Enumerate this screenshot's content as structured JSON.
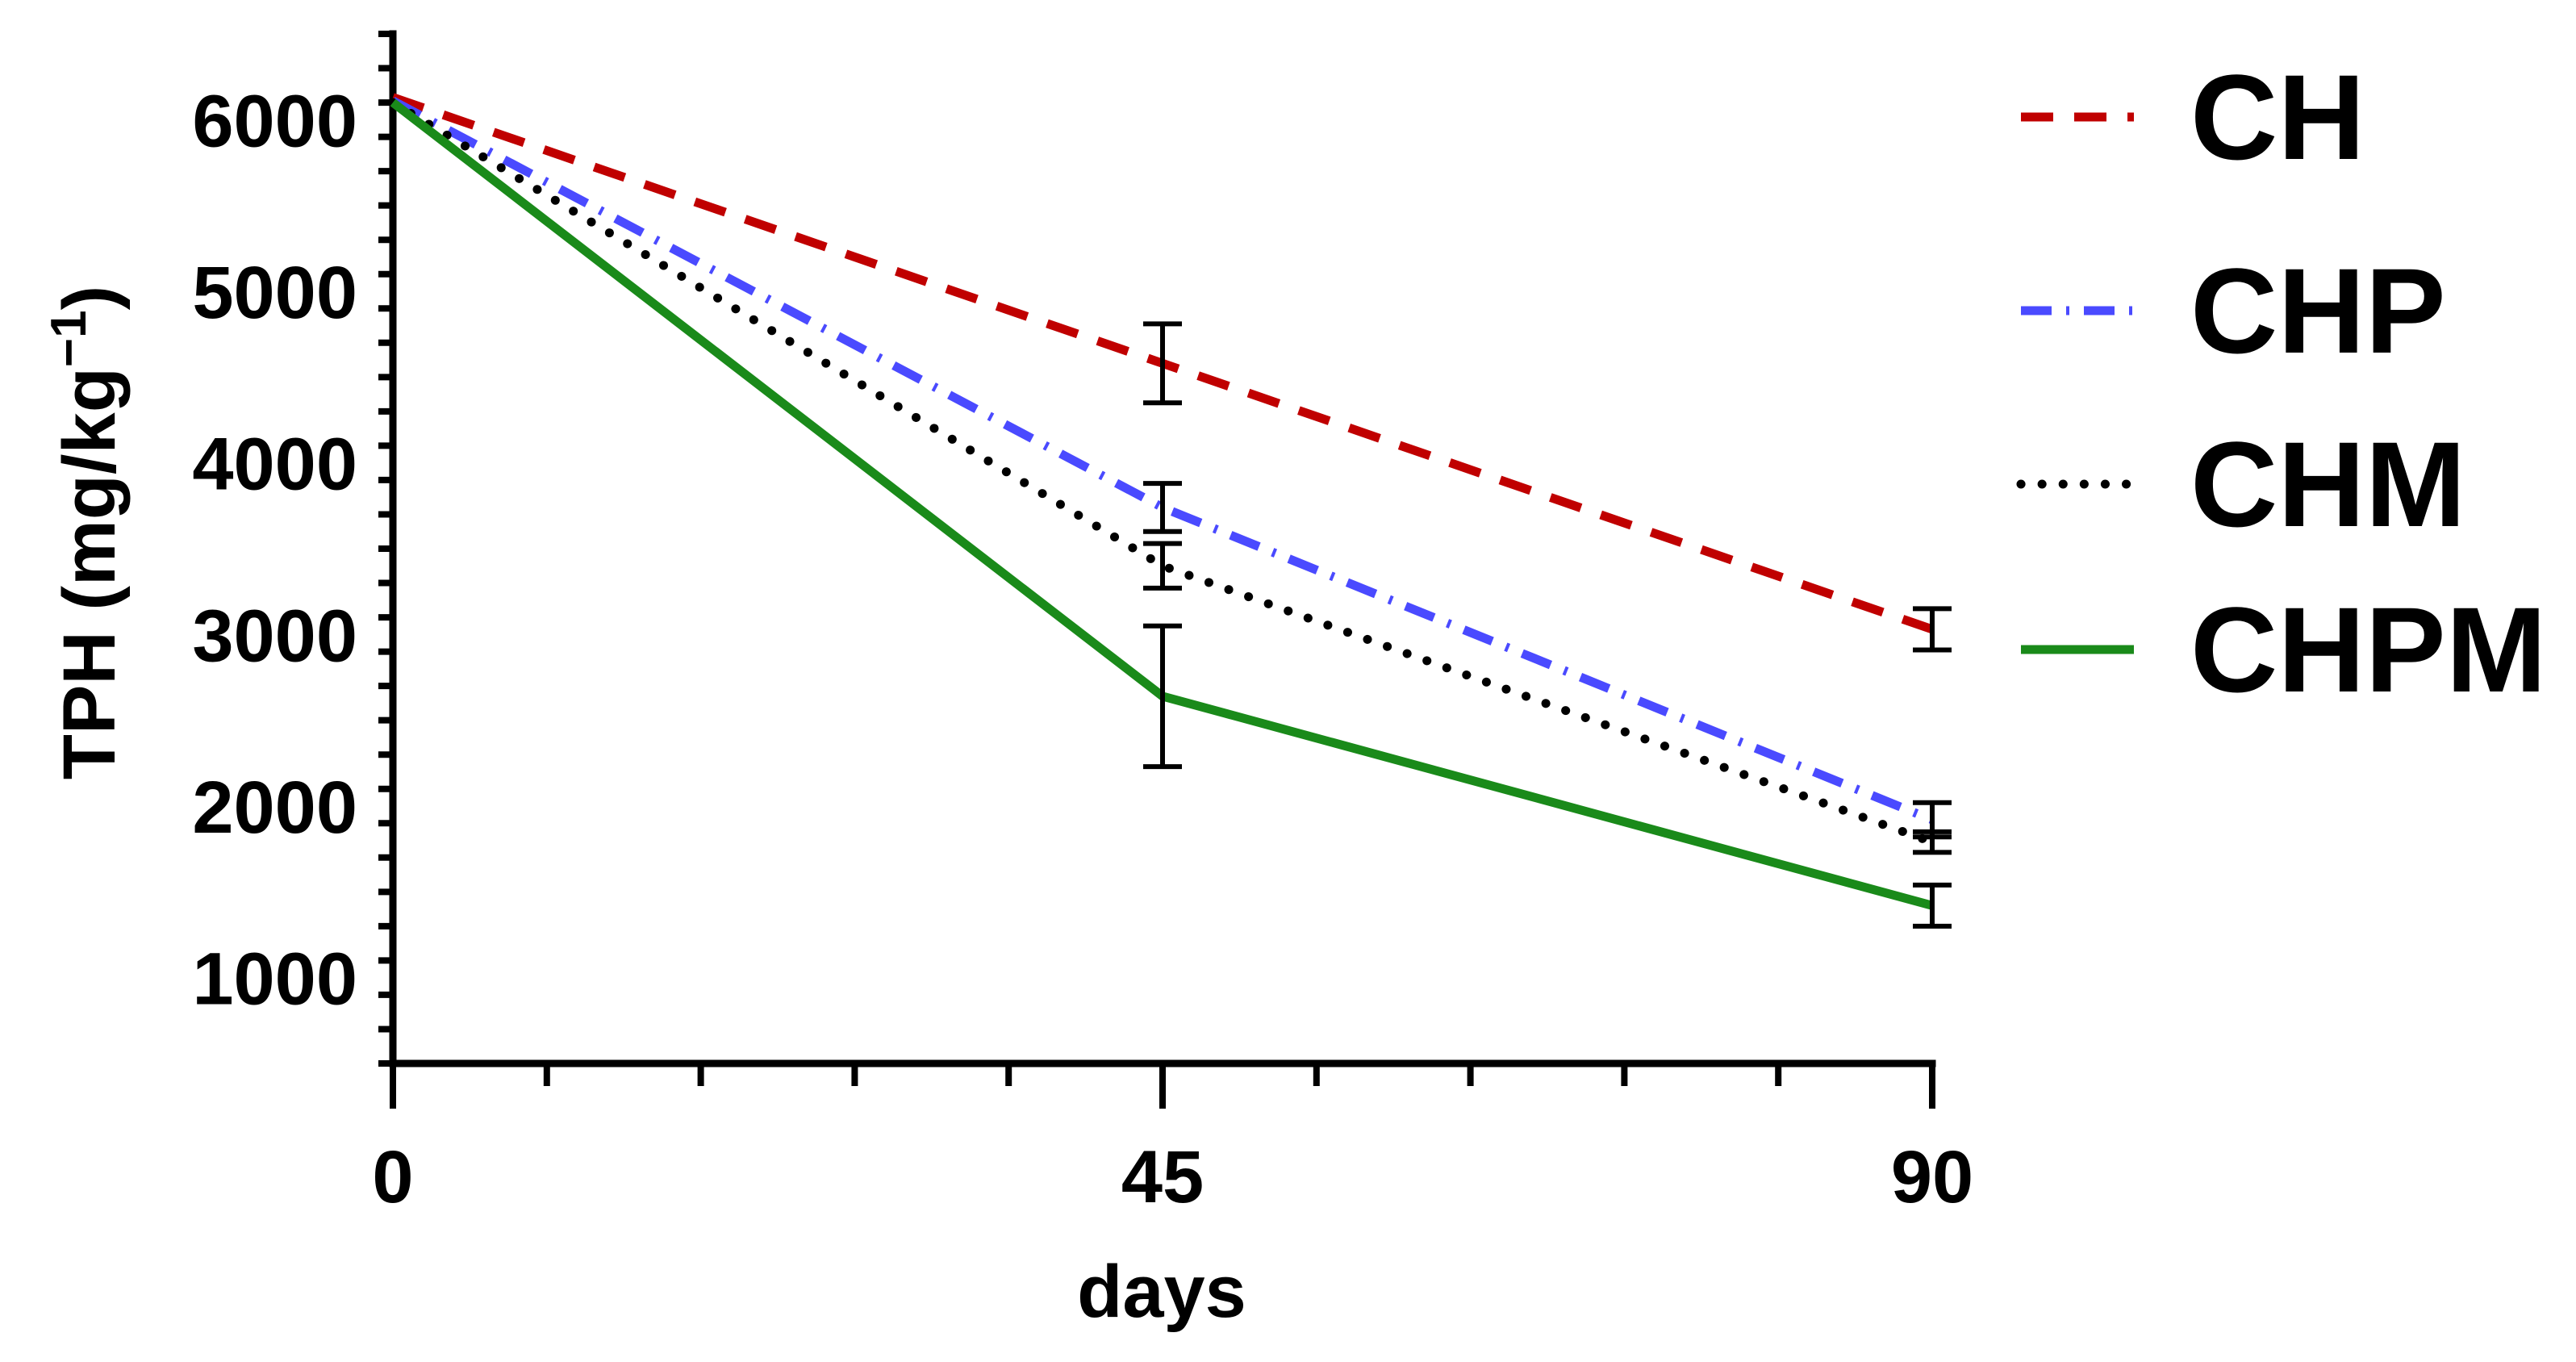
{
  "chart_data": {
    "type": "line",
    "title": "",
    "xlabel": "days",
    "ylabel_main": "TPH (mg/kg",
    "ylabel_sup": "−1",
    "ylabel_close": ")",
    "x": [
      0,
      45,
      90
    ],
    "x_tick_labels": [
      "0",
      "45",
      "90"
    ],
    "xlim": [
      0,
      90
    ],
    "ylim": [
      500,
      6500
    ],
    "y_ticks": [
      1000,
      2000,
      3000,
      4000,
      5000,
      6000
    ],
    "y_tick_labels": [
      "1000",
      "2000",
      "3000",
      "4000",
      "5000",
      "6000"
    ],
    "legend_position": "right",
    "series": [
      {
        "name": "CH",
        "color": "#c00000",
        "dash": "dashed",
        "values": [
          6130,
          4580,
          3030
        ],
        "errors": [
          0,
          230,
          120
        ]
      },
      {
        "name": "CHP",
        "color": "#4a4aff",
        "dash": "dashdot",
        "values": [
          6110,
          3740,
          1920
        ],
        "errors": [
          0,
          140,
          100
        ]
      },
      {
        "name": "CHM",
        "color": "#000000",
        "dash": "dotted",
        "values": [
          6100,
          3400,
          1790
        ],
        "errors": [
          0,
          130,
          60
        ]
      },
      {
        "name": "CHPM",
        "color": "#1a8a1a",
        "dash": "solid",
        "values": [
          6100,
          2640,
          1420
        ],
        "errors": [
          0,
          410,
          120
        ]
      }
    ]
  }
}
